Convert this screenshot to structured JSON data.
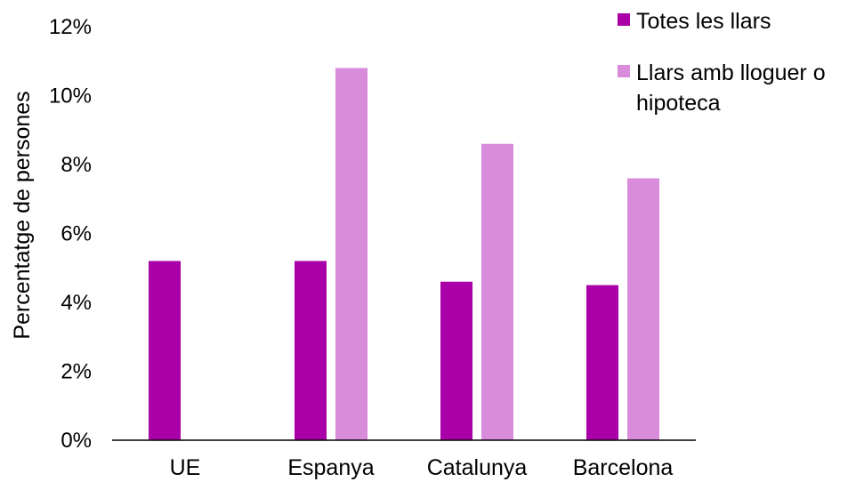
{
  "chart_data": {
    "type": "bar",
    "ylabel": "Percentatge de persones",
    "xlabel": "",
    "categories": [
      "UE",
      "Espanya",
      "Catalunya",
      "Barcelona"
    ],
    "ylim": [
      0,
      12
    ],
    "yticks": [
      "0%",
      "2%",
      "4%",
      "6%",
      "8%",
      "10%",
      "12%"
    ],
    "grid": false,
    "legend_position": "top-right",
    "series": [
      {
        "name": "Totes les llars",
        "color": "#aa00a7",
        "values": [
          5.2,
          5.2,
          4.6,
          4.5
        ]
      },
      {
        "name": "Llars amb lloguer o hipoteca",
        "color": "#d88cdb",
        "values": [
          null,
          10.8,
          8.6,
          7.6
        ]
      }
    ],
    "legend": [
      {
        "lines": [
          "Totes les llars"
        ]
      },
      {
        "lines": [
          "Llars amb lloguer o",
          "hipoteca"
        ]
      }
    ]
  }
}
